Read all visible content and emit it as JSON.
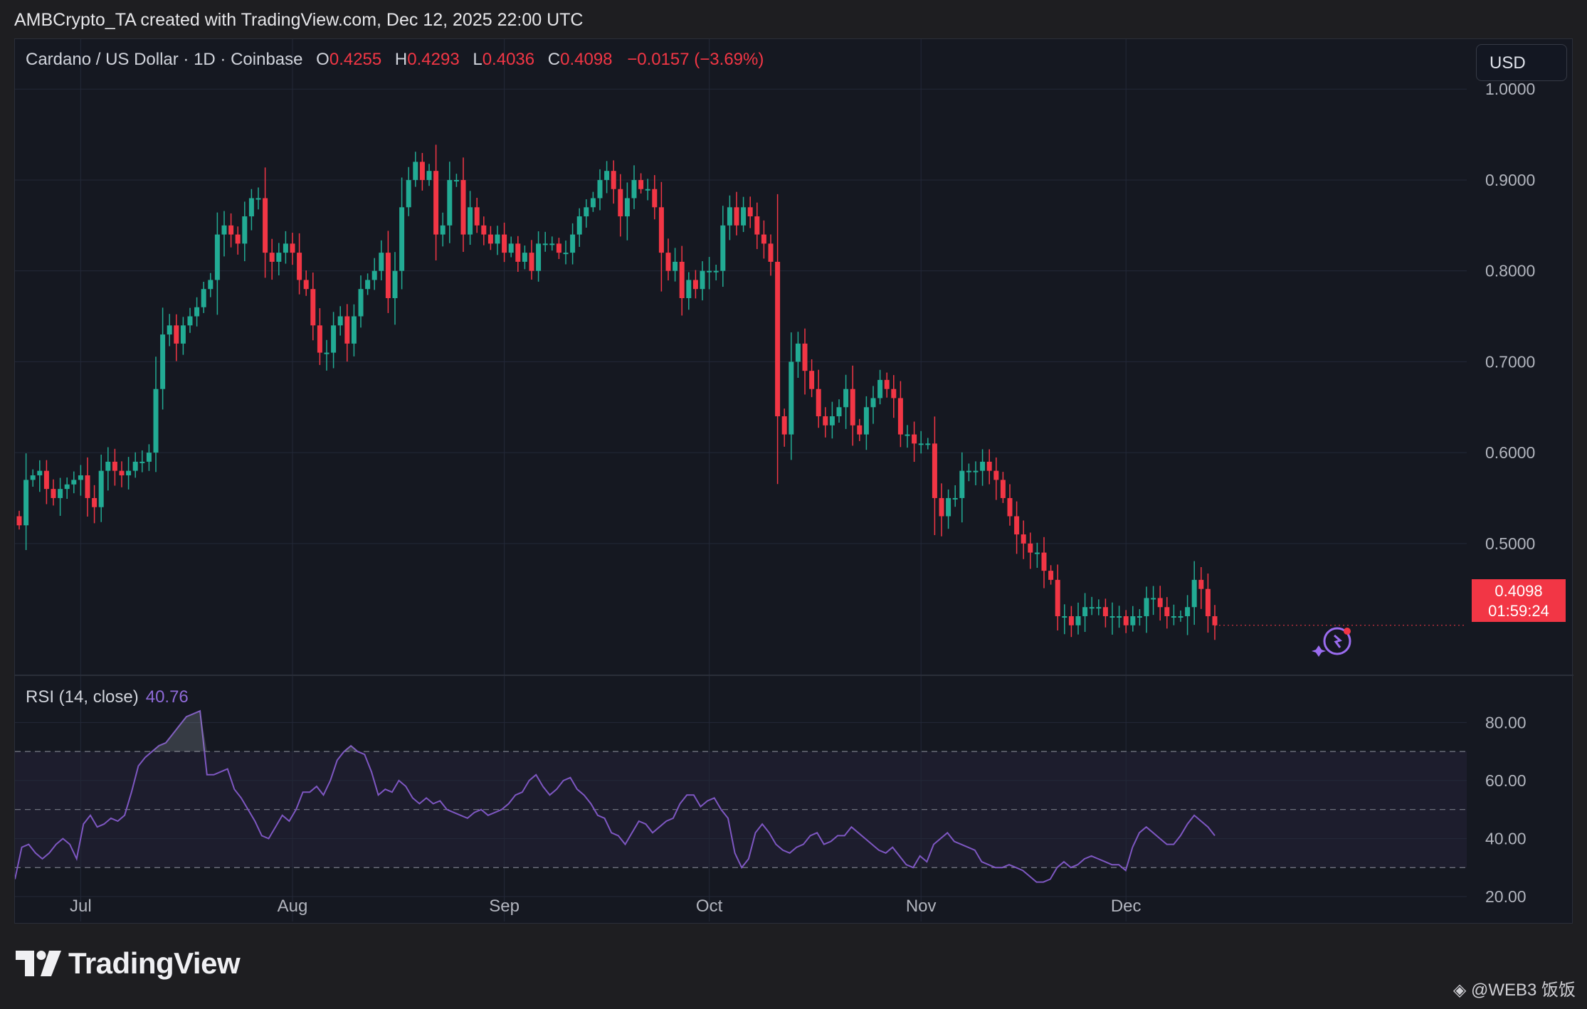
{
  "header": {
    "caption": "AMBCrypto_TA created with TradingView.com, Dec 12, 2025 22:00 UTC"
  },
  "legend": {
    "symbol": "Cardano / US Dollar · 1D · Coinbase",
    "open_label": "O",
    "open": "0.4255",
    "high_label": "H",
    "high": "0.4293",
    "low_label": "L",
    "low": "0.4036",
    "close_label": "C",
    "close": "0.4098",
    "change": "−0.0157 (−3.69%)"
  },
  "currency_button": "USD",
  "price_tag": {
    "price": "0.4098",
    "countdown": "01:59:24"
  },
  "rsi_legend": {
    "label": "RSI (14, close)",
    "value": "40.76"
  },
  "footer": {
    "brand": "TradingView",
    "watermark": "@WEB3 饭饭"
  },
  "colors": {
    "up": "#22ab94",
    "down": "#f23645",
    "rsi": "#7e57c2",
    "background": "#151821",
    "grid": "#232838"
  },
  "chart_data": [
    {
      "type": "candlestick",
      "title": "Cardano / US Dollar · 1D · Coinbase",
      "x_tick_labels": [
        "Jul",
        "Aug",
        "Sep",
        "Oct",
        "Nov",
        "Dec"
      ],
      "y_tick_labels": [
        "1.0000",
        "0.9000",
        "0.8000",
        "0.7000",
        "0.6000",
        "0.5000"
      ],
      "ylim": [
        0.355,
        1.055
      ],
      "grid": true,
      "note": "daily close path, approx. June 22 – Dec 12, 2025",
      "close": [
        0.52,
        0.57,
        0.575,
        0.58,
        0.56,
        0.55,
        0.56,
        0.565,
        0.57,
        0.575,
        0.55,
        0.54,
        0.58,
        0.59,
        0.58,
        0.575,
        0.58,
        0.59,
        0.59,
        0.6,
        0.67,
        0.73,
        0.74,
        0.72,
        0.74,
        0.75,
        0.76,
        0.78,
        0.79,
        0.84,
        0.85,
        0.84,
        0.83,
        0.86,
        0.88,
        0.88,
        0.82,
        0.81,
        0.82,
        0.83,
        0.82,
        0.79,
        0.78,
        0.74,
        0.71,
        0.71,
        0.74,
        0.75,
        0.72,
        0.75,
        0.78,
        0.79,
        0.8,
        0.82,
        0.77,
        0.8,
        0.87,
        0.9,
        0.92,
        0.9,
        0.91,
        0.84,
        0.85,
        0.9,
        0.9,
        0.84,
        0.87,
        0.85,
        0.84,
        0.83,
        0.84,
        0.82,
        0.83,
        0.81,
        0.82,
        0.8,
        0.83,
        0.83,
        0.83,
        0.82,
        0.82,
        0.84,
        0.86,
        0.87,
        0.88,
        0.9,
        0.91,
        0.89,
        0.86,
        0.88,
        0.9,
        0.89,
        0.89,
        0.87,
        0.82,
        0.8,
        0.81,
        0.77,
        0.79,
        0.78,
        0.8,
        0.8,
        0.8,
        0.85,
        0.87,
        0.85,
        0.87,
        0.86,
        0.84,
        0.83,
        0.81,
        0.64,
        0.62,
        0.7,
        0.72,
        0.69,
        0.67,
        0.64,
        0.63,
        0.64,
        0.65,
        0.67,
        0.63,
        0.62,
        0.65,
        0.66,
        0.68,
        0.67,
        0.66,
        0.62,
        0.62,
        0.61,
        0.61,
        0.61,
        0.55,
        0.53,
        0.55,
        0.55,
        0.58,
        0.58,
        0.58,
        0.59,
        0.58,
        0.57,
        0.55,
        0.53,
        0.51,
        0.5,
        0.49,
        0.49,
        0.47,
        0.46,
        0.42,
        0.42,
        0.41,
        0.42,
        0.43,
        0.43,
        0.43,
        0.42,
        0.42,
        0.42,
        0.41,
        0.42,
        0.42,
        0.44,
        0.44,
        0.43,
        0.42,
        0.42,
        0.42,
        0.43,
        0.46,
        0.45,
        0.42,
        0.41
      ]
    },
    {
      "type": "line",
      "title": "RSI (14, close)",
      "y_tick_labels": [
        "80.00",
        "60.00",
        "40.00",
        "20.00"
      ],
      "ylim": [
        20,
        85
      ],
      "bands": {
        "upper": 70,
        "middle": 50,
        "lower": 30
      },
      "values": [
        26,
        37,
        38,
        35,
        33,
        35,
        38,
        40,
        38,
        33,
        45,
        48,
        44,
        45,
        47,
        46,
        48,
        56,
        65,
        68,
        70,
        72,
        73,
        76,
        79,
        82,
        83,
        84,
        62,
        62,
        63,
        64,
        57,
        54,
        50,
        46,
        41,
        40,
        44,
        48,
        46,
        50,
        56,
        56,
        58,
        55,
        60,
        67,
        70,
        72,
        70,
        69,
        63,
        55,
        57,
        56,
        60,
        58,
        54,
        52,
        54,
        52,
        53,
        50,
        49,
        48,
        47,
        49,
        50,
        48,
        49,
        50,
        52,
        55,
        56,
        60,
        62,
        58,
        55,
        57,
        60,
        61,
        57,
        55,
        52,
        48,
        47,
        42,
        41,
        38,
        42,
        46,
        45,
        42,
        44,
        46,
        47,
        52,
        55,
        55,
        51,
        53,
        54,
        50,
        47,
        35,
        30,
        33,
        42,
        45,
        42,
        38,
        36,
        35,
        37,
        38,
        41,
        42,
        38,
        39,
        41,
        41,
        44,
        42,
        40,
        38,
        36,
        35,
        37,
        34,
        31,
        30,
        34,
        32,
        38,
        40,
        42,
        39,
        38,
        37,
        36,
        32,
        31,
        30,
        30,
        31,
        30,
        29,
        27,
        25,
        25,
        26,
        30,
        32,
        30,
        31,
        33,
        34,
        33,
        32,
        31,
        31,
        29,
        37,
        42,
        44,
        42,
        40,
        38,
        38,
        41,
        45,
        48,
        46,
        44,
        41
      ]
    }
  ]
}
